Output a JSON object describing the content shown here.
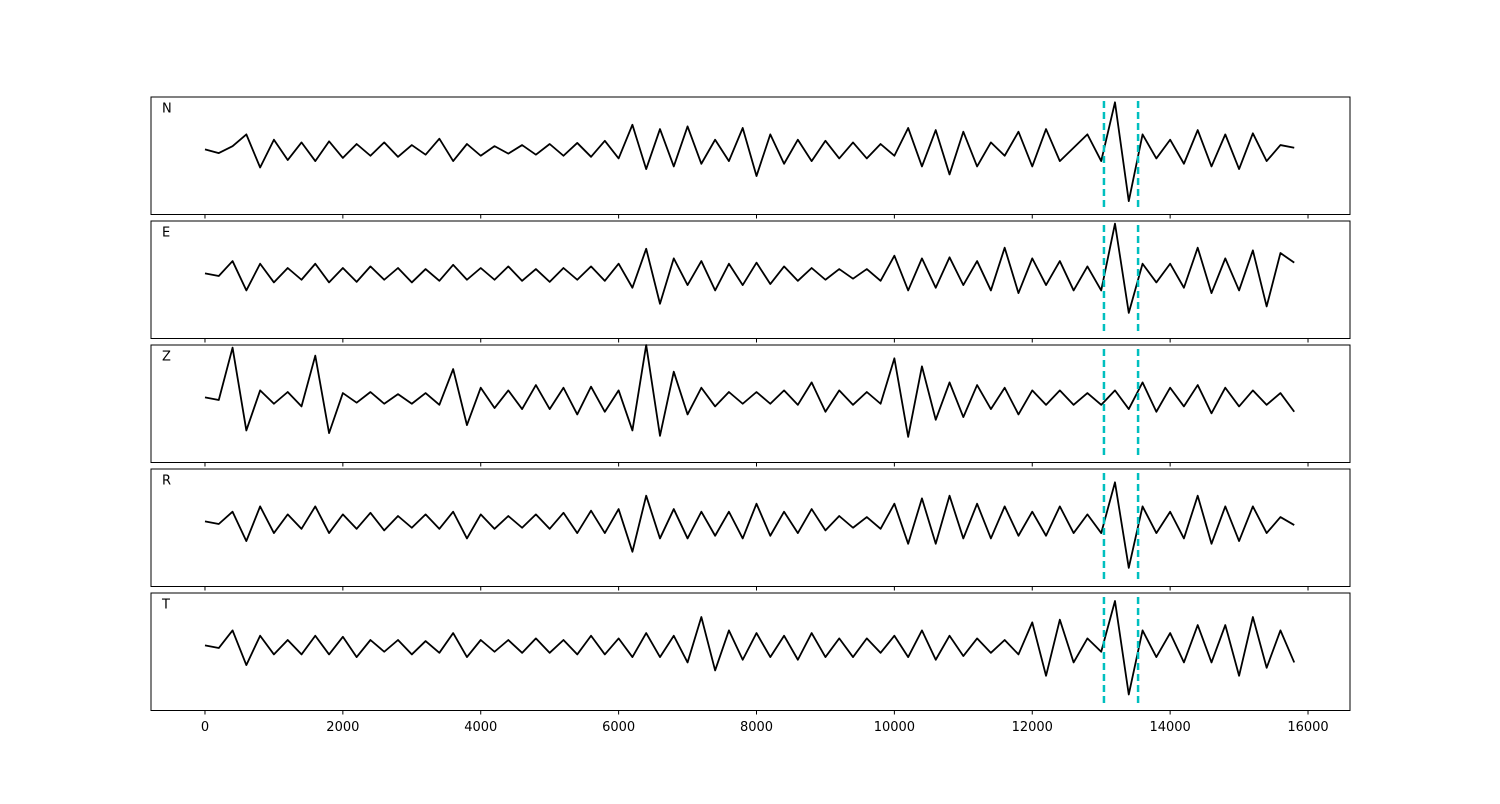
{
  "chart_data": {
    "type": "line",
    "x": [
      0,
      200,
      400,
      600,
      800,
      1000,
      1200,
      1400,
      1600,
      1800,
      2000,
      2200,
      2400,
      2600,
      2800,
      3000,
      3200,
      3400,
      3600,
      3800,
      4000,
      4200,
      4400,
      4600,
      4800,
      5000,
      5200,
      5400,
      5600,
      5800,
      6000,
      6200,
      6400,
      6600,
      6800,
      7000,
      7200,
      7400,
      7600,
      7800,
      8000,
      8200,
      8400,
      8600,
      8800,
      9000,
      9200,
      9400,
      9600,
      9800,
      10000,
      10200,
      10400,
      10600,
      10800,
      11000,
      11200,
      11400,
      11600,
      11800,
      12000,
      12200,
      12400,
      12600,
      12800,
      13000,
      13200,
      13400,
      13600,
      13800,
      14000,
      14200,
      14400,
      14600,
      14800,
      15000,
      15200,
      15400,
      15600,
      15800
    ],
    "series": [
      {
        "name": "N",
        "color": "#000000",
        "values": [
          0.02,
          -0.05,
          0.08,
          0.3,
          -0.32,
          0.2,
          -0.18,
          0.15,
          -0.2,
          0.17,
          -0.14,
          0.12,
          -0.1,
          0.15,
          -0.12,
          0.1,
          -0.08,
          0.22,
          -0.2,
          0.12,
          -0.1,
          0.08,
          -0.06,
          0.1,
          -0.08,
          0.12,
          -0.1,
          0.14,
          -0.12,
          0.18,
          -0.15,
          0.48,
          -0.35,
          0.4,
          -0.3,
          0.45,
          -0.25,
          0.2,
          -0.2,
          0.42,
          -0.48,
          0.3,
          -0.25,
          0.2,
          -0.2,
          0.18,
          -0.15,
          0.15,
          -0.15,
          0.12,
          -0.1,
          0.42,
          -0.3,
          0.38,
          -0.45,
          0.35,
          -0.3,
          0.15,
          -0.1,
          0.35,
          -0.3,
          0.4,
          -0.2,
          0.05,
          0.3,
          -0.2,
          0.9,
          -0.95,
          0.3,
          -0.15,
          0.2,
          -0.25,
          0.38,
          -0.3,
          0.3,
          -0.35,
          0.32,
          -0.2,
          0.1,
          0.05
        ]
      },
      {
        "name": "E",
        "color": "#000000",
        "values": [
          0.02,
          -0.03,
          0.25,
          -0.3,
          0.2,
          -0.15,
          0.12,
          -0.1,
          0.2,
          -0.15,
          0.12,
          -0.14,
          0.15,
          -0.1,
          0.12,
          -0.15,
          0.1,
          -0.12,
          0.18,
          -0.1,
          0.12,
          -0.1,
          0.15,
          -0.12,
          0.1,
          -0.14,
          0.12,
          -0.1,
          0.15,
          -0.12,
          0.2,
          -0.25,
          0.48,
          -0.55,
          0.3,
          -0.2,
          0.25,
          -0.3,
          0.2,
          -0.2,
          0.22,
          -0.18,
          0.15,
          -0.12,
          0.12,
          -0.1,
          0.1,
          -0.08,
          0.1,
          -0.12,
          0.35,
          -0.3,
          0.3,
          -0.25,
          0.32,
          -0.2,
          0.25,
          -0.3,
          0.5,
          -0.35,
          0.3,
          -0.2,
          0.25,
          -0.3,
          0.15,
          -0.3,
          0.95,
          -0.72,
          0.2,
          -0.15,
          0.2,
          -0.25,
          0.5,
          -0.35,
          0.3,
          -0.3,
          0.45,
          -0.6,
          0.4,
          0.22
        ]
      },
      {
        "name": "Z",
        "color": "#000000",
        "values": [
          0.02,
          -0.03,
          0.95,
          -0.6,
          0.15,
          -0.1,
          0.12,
          -0.15,
          0.8,
          -0.65,
          0.1,
          -0.08,
          0.12,
          -0.1,
          0.08,
          -0.1,
          0.1,
          -0.12,
          0.55,
          -0.5,
          0.2,
          -0.18,
          0.15,
          -0.2,
          0.25,
          -0.2,
          0.2,
          -0.3,
          0.22,
          -0.25,
          0.15,
          -0.6,
          1.0,
          -0.7,
          0.5,
          -0.3,
          0.2,
          -0.15,
          0.12,
          -0.1,
          0.12,
          -0.1,
          0.15,
          -0.12,
          0.3,
          -0.25,
          0.15,
          -0.12,
          0.12,
          -0.1,
          0.75,
          -0.72,
          0.6,
          -0.4,
          0.3,
          -0.35,
          0.25,
          -0.2,
          0.2,
          -0.3,
          0.15,
          -0.12,
          0.15,
          -0.12,
          0.1,
          -0.12,
          0.15,
          -0.2,
          0.3,
          -0.25,
          0.2,
          -0.15,
          0.25,
          -0.28,
          0.2,
          -0.15,
          0.15,
          -0.12,
          0.1,
          -0.25
        ]
      },
      {
        "name": "R",
        "color": "#000000",
        "values": [
          0.02,
          -0.03,
          0.2,
          -0.35,
          0.3,
          -0.2,
          0.15,
          -0.12,
          0.3,
          -0.2,
          0.15,
          -0.12,
          0.18,
          -0.15,
          0.12,
          -0.1,
          0.15,
          -0.12,
          0.2,
          -0.3,
          0.15,
          -0.12,
          0.12,
          -0.1,
          0.15,
          -0.12,
          0.18,
          -0.2,
          0.22,
          -0.2,
          0.25,
          -0.55,
          0.5,
          -0.3,
          0.25,
          -0.3,
          0.2,
          -0.25,
          0.2,
          -0.3,
          0.35,
          -0.25,
          0.2,
          -0.2,
          0.25,
          -0.15,
          0.12,
          -0.1,
          0.1,
          -0.12,
          0.35,
          -0.4,
          0.45,
          -0.4,
          0.5,
          -0.3,
          0.35,
          -0.3,
          0.3,
          -0.25,
          0.2,
          -0.25,
          0.3,
          -0.2,
          0.15,
          -0.2,
          0.75,
          -0.85,
          0.3,
          -0.2,
          0.2,
          -0.3,
          0.5,
          -0.4,
          0.3,
          -0.35,
          0.3,
          -0.2,
          0.1,
          -0.05
        ]
      },
      {
        "name": "T",
        "color": "#000000",
        "values": [
          0.02,
          -0.03,
          0.3,
          -0.35,
          0.2,
          -0.15,
          0.12,
          -0.15,
          0.2,
          -0.15,
          0.18,
          -0.2,
          0.12,
          -0.1,
          0.12,
          -0.15,
          0.1,
          -0.12,
          0.25,
          -0.2,
          0.12,
          -0.1,
          0.12,
          -0.12,
          0.15,
          -0.12,
          0.12,
          -0.15,
          0.2,
          -0.15,
          0.15,
          -0.2,
          0.25,
          -0.2,
          0.2,
          -0.3,
          0.55,
          -0.45,
          0.3,
          -0.25,
          0.25,
          -0.2,
          0.2,
          -0.25,
          0.25,
          -0.2,
          0.15,
          -0.2,
          0.15,
          -0.12,
          0.2,
          -0.2,
          0.3,
          -0.25,
          0.2,
          -0.18,
          0.15,
          -0.12,
          0.12,
          -0.15,
          0.45,
          -0.55,
          0.5,
          -0.3,
          0.15,
          -0.1,
          0.85,
          -0.9,
          0.3,
          -0.2,
          0.25,
          -0.3,
          0.4,
          -0.3,
          0.4,
          -0.55,
          0.55,
          -0.4,
          0.3,
          -0.3
        ]
      }
    ],
    "xlim": [
      -783,
      16609
    ],
    "xticks": [
      0,
      2000,
      4000,
      6000,
      8000,
      10000,
      12000,
      14000,
      16000
    ],
    "ylim": [
      -1.2,
      1.0
    ],
    "vlines": [
      13040,
      13535
    ],
    "vline_color": "#00bfbf"
  }
}
